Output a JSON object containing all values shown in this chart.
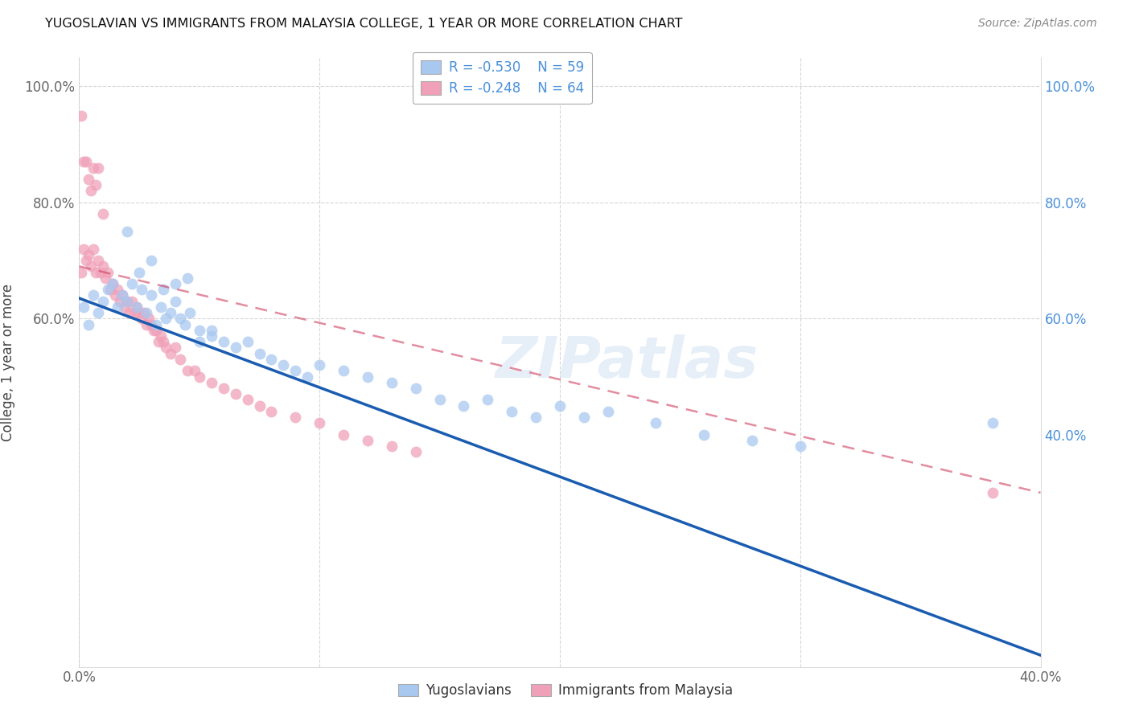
{
  "title": "YUGOSLAVIAN VS IMMIGRANTS FROM MALAYSIA COLLEGE, 1 YEAR OR MORE CORRELATION CHART",
  "source": "Source: ZipAtlas.com",
  "ylabel": "College, 1 year or more",
  "xlim": [
    0.0,
    0.4
  ],
  "ylim": [
    0.0,
    1.05
  ],
  "blue_color": "#A8C8F0",
  "pink_color": "#F0A0B8",
  "blue_line_color": "#1A5CB0",
  "pink_line_color": "#D04060",
  "watermark_text": "ZIPatlas",
  "background_color": "#FFFFFF",
  "grid_color": "#CCCCCC",
  "right_axis_color": "#4A90D9",
  "blue_scatter_x": [
    0.002,
    0.004,
    0.006,
    0.008,
    0.01,
    0.012,
    0.014,
    0.016,
    0.018,
    0.02,
    0.022,
    0.024,
    0.026,
    0.028,
    0.03,
    0.032,
    0.034,
    0.036,
    0.038,
    0.04,
    0.042,
    0.044,
    0.046,
    0.05,
    0.055,
    0.06,
    0.065,
    0.07,
    0.075,
    0.08,
    0.085,
    0.09,
    0.095,
    0.1,
    0.11,
    0.12,
    0.13,
    0.14,
    0.15,
    0.16,
    0.17,
    0.18,
    0.19,
    0.2,
    0.21,
    0.22,
    0.24,
    0.26,
    0.28,
    0.3,
    0.02,
    0.025,
    0.03,
    0.035,
    0.04,
    0.045,
    0.05,
    0.055,
    0.38
  ],
  "blue_scatter_y": [
    0.62,
    0.59,
    0.64,
    0.61,
    0.63,
    0.65,
    0.66,
    0.62,
    0.64,
    0.63,
    0.66,
    0.62,
    0.65,
    0.61,
    0.64,
    0.59,
    0.62,
    0.6,
    0.61,
    0.63,
    0.6,
    0.59,
    0.61,
    0.58,
    0.57,
    0.56,
    0.55,
    0.56,
    0.54,
    0.53,
    0.52,
    0.51,
    0.5,
    0.52,
    0.51,
    0.5,
    0.49,
    0.48,
    0.46,
    0.45,
    0.46,
    0.44,
    0.43,
    0.45,
    0.43,
    0.44,
    0.42,
    0.4,
    0.39,
    0.38,
    0.75,
    0.68,
    0.7,
    0.65,
    0.66,
    0.67,
    0.56,
    0.58,
    0.42
  ],
  "pink_scatter_x": [
    0.001,
    0.002,
    0.003,
    0.004,
    0.005,
    0.006,
    0.007,
    0.008,
    0.009,
    0.01,
    0.011,
    0.012,
    0.013,
    0.014,
    0.015,
    0.016,
    0.017,
    0.018,
    0.019,
    0.02,
    0.021,
    0.022,
    0.023,
    0.024,
    0.025,
    0.026,
    0.027,
    0.028,
    0.029,
    0.03,
    0.031,
    0.032,
    0.033,
    0.034,
    0.035,
    0.036,
    0.038,
    0.04,
    0.042,
    0.045,
    0.048,
    0.05,
    0.055,
    0.06,
    0.065,
    0.07,
    0.075,
    0.08,
    0.09,
    0.1,
    0.11,
    0.12,
    0.13,
    0.14,
    0.001,
    0.002,
    0.003,
    0.004,
    0.005,
    0.006,
    0.007,
    0.008,
    0.01,
    0.38
  ],
  "pink_scatter_y": [
    0.68,
    0.72,
    0.7,
    0.71,
    0.69,
    0.72,
    0.68,
    0.7,
    0.68,
    0.69,
    0.67,
    0.68,
    0.65,
    0.66,
    0.64,
    0.65,
    0.63,
    0.64,
    0.62,
    0.63,
    0.61,
    0.63,
    0.61,
    0.62,
    0.61,
    0.6,
    0.61,
    0.59,
    0.6,
    0.59,
    0.58,
    0.58,
    0.56,
    0.57,
    0.56,
    0.55,
    0.54,
    0.55,
    0.53,
    0.51,
    0.51,
    0.5,
    0.49,
    0.48,
    0.47,
    0.46,
    0.45,
    0.44,
    0.43,
    0.42,
    0.4,
    0.39,
    0.38,
    0.37,
    0.95,
    0.87,
    0.87,
    0.84,
    0.82,
    0.86,
    0.83,
    0.86,
    0.78,
    0.3
  ],
  "blue_line_x0": 0.0,
  "blue_line_y0": 0.635,
  "blue_line_x1": 0.4,
  "blue_line_y1": 0.02,
  "pink_line_x0": 0.0,
  "pink_line_y0": 0.69,
  "pink_line_x1": 0.4,
  "pink_line_y1": 0.3,
  "legend_R_blue": "R = -0.530",
  "legend_N_blue": "N = 59",
  "legend_R_pink": "R = -0.248",
  "legend_N_pink": "N = 64",
  "left_yticks": [
    0.6,
    0.8,
    1.0
  ],
  "left_yticklabels": [
    "60.0%",
    "80.0%",
    "100.0%"
  ],
  "right_yticks": [
    0.4,
    0.6,
    0.8,
    1.0
  ],
  "right_yticklabels": [
    "40.0%",
    "60.0%",
    "80.0%",
    "100.0%"
  ],
  "xticks": [
    0.0,
    0.1,
    0.2,
    0.3,
    0.4
  ],
  "xticklabels": [
    "0.0%",
    "",
    "",
    "",
    "40.0%"
  ]
}
